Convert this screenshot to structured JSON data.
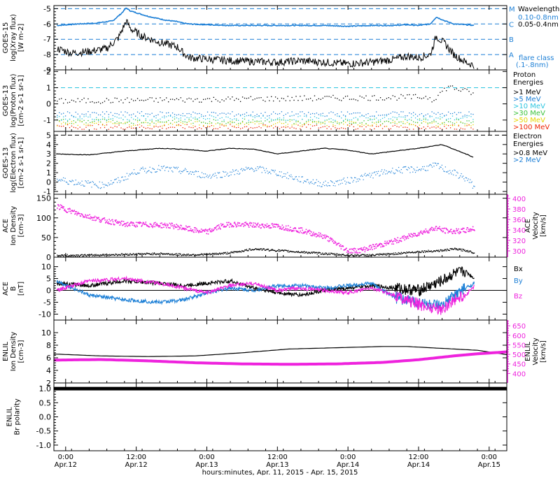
{
  "colors": {
    "axis": "#000000",
    "blue": "#1c7fd6",
    "cyan": "#2cc5e0",
    "magenta": "#ee22dd",
    "green": "#3cc23c",
    "yellow": "#e6d400",
    "orange": "#ee8800",
    "red": "#ee2200"
  },
  "x_axis": {
    "title": "hours:minutes, Apr. 11, 2015 - Apr. 15, 2015",
    "ticks": [
      {
        "t": 0,
        "time": "0:00",
        "date": "Apr.12"
      },
      {
        "t": 12,
        "time": "12:00",
        "date": "Apr.12"
      },
      {
        "t": 24,
        "time": "0:00",
        "date": "Apr.13"
      },
      {
        "t": 36,
        "time": "12:00",
        "date": "Apr.13"
      },
      {
        "t": 48,
        "time": "0:00",
        "date": "Apr.14"
      },
      {
        "t": 60,
        "time": "12:00",
        "date": "Apr.14"
      },
      {
        "t": 72,
        "time": "0:00",
        "date": "Apr.15"
      }
    ],
    "range": [
      -2,
      75
    ]
  },
  "chart_data": [
    {
      "type": "line",
      "ylabel": [
        "GOES-15",
        "log(Xray flux)",
        "[W m-2]"
      ],
      "ylim": [
        -9,
        -4.8
      ],
      "yticks": [
        -9,
        -8,
        -7,
        -6,
        -5
      ],
      "flare_levels": [
        {
          "name": "M",
          "value": -5
        },
        {
          "name": "C",
          "value": -6
        },
        {
          "name": "B",
          "value": -7
        },
        {
          "name": "A",
          "value": -8
        }
      ],
      "legend": {
        "title": "Wavelength",
        "items": [
          {
            "label": "0.10-0.8nm",
            "color": "blue"
          },
          {
            "label": "0.05-0.4nm",
            "color": "axis"
          }
        ],
        "note": [
          "flare class",
          "(.1-.8nm)"
        ]
      },
      "series": [
        {
          "color": "blue",
          "x": [
            -1.5,
            2,
            5,
            8,
            9.5,
            10.3,
            11,
            14,
            17,
            19,
            20,
            21,
            24,
            28,
            32,
            36,
            40,
            44,
            48,
            52,
            56,
            58,
            60,
            62,
            63,
            64.5,
            66,
            68,
            69.5
          ],
          "y": [
            -6.1,
            -6.0,
            -5.95,
            -5.8,
            -5.3,
            -4.95,
            -5.15,
            -5.5,
            -5.75,
            -5.85,
            -5.95,
            -6.0,
            -6.05,
            -6.1,
            -6.1,
            -6.1,
            -6.1,
            -6.1,
            -6.15,
            -6.1,
            -6.1,
            -6.05,
            -6.1,
            -6.0,
            -5.55,
            -5.8,
            -6.0,
            -6.05,
            -6.1
          ]
        },
        {
          "color": "axis",
          "x": [
            -1.5,
            1,
            4,
            7,
            9,
            10.3,
            11,
            13,
            16,
            19,
            20,
            21,
            24,
            28,
            32,
            36,
            40,
            44,
            48,
            52,
            56,
            58,
            60,
            62,
            63,
            64.5,
            66,
            68,
            69.5
          ],
          "y": [
            -7.6,
            -7.9,
            -7.8,
            -7.6,
            -6.9,
            -5.8,
            -6.3,
            -6.8,
            -7.2,
            -7.5,
            -7.9,
            -8.2,
            -8.3,
            -8.4,
            -8.45,
            -8.5,
            -8.4,
            -8.5,
            -8.6,
            -8.5,
            -8.3,
            -8.1,
            -8.2,
            -8.0,
            -6.8,
            -7.3,
            -8.0,
            -8.5,
            -8.7
          ]
        }
      ]
    },
    {
      "type": "scatter",
      "ylabel": [
        "GOES-13",
        "log(Proton flux)",
        "[cm-2 s-1 sr-1]"
      ],
      "ylim": [
        -1.7,
        2.1
      ],
      "yticks": [
        -1,
        0,
        1,
        2
      ],
      "reference_line": 1,
      "legend": {
        "title": [
          "Proton",
          "Energies"
        ],
        "items": [
          {
            "label": ">1 MeV",
            "color": "axis",
            "level": 0.2
          },
          {
            "label": ">5 MeV",
            "color": "blue",
            "level": -0.6
          },
          {
            "label": ">10 MeV",
            "color": "cyan",
            "level": -0.85
          },
          {
            "label": ">30 MeV",
            "color": "green",
            "level": -1.05
          },
          {
            "label": ">50 MeV",
            "color": "yellow",
            "level": -1.2
          },
          {
            "label": ">100 MeV",
            "color": "red",
            "level": -1.4
          }
        ]
      }
    },
    {
      "type": "scatter",
      "ylabel": [
        "GOES-13",
        "log(Electron flux)",
        "[cm-2 s-1 sr-1]"
      ],
      "ylim": [
        -1.3,
        5.4
      ],
      "yticks": [
        -1,
        0,
        1,
        2,
        3,
        4,
        5
      ],
      "reference_line": 5,
      "legend": {
        "title": [
          "Electron",
          "Energies"
        ],
        "items": [
          {
            "label": ">0.8 MeV",
            "color": "axis"
          },
          {
            "label": ">2 MeV",
            "color": "blue"
          }
        ]
      },
      "series": [
        {
          "color": "axis",
          "x": [
            -1.5,
            4,
            10,
            16,
            20,
            24,
            28,
            32,
            36,
            40,
            44,
            48,
            52,
            56,
            60,
            64,
            66,
            68,
            69.5
          ],
          "y": [
            3.0,
            2.9,
            3.3,
            3.6,
            3.5,
            3.3,
            3.6,
            3.5,
            3.0,
            3.3,
            3.6,
            3.4,
            3.0,
            3.3,
            3.6,
            4.0,
            3.5,
            3.0,
            2.6
          ]
        },
        {
          "color": "blue",
          "x": [
            -1.5,
            2,
            6,
            9,
            12,
            16,
            20,
            24,
            28,
            32,
            36,
            40,
            44,
            48,
            52,
            56,
            60,
            63,
            64,
            66,
            68,
            69.5
          ],
          "y": [
            0.3,
            0.0,
            -0.3,
            0.2,
            1.2,
            1.5,
            1.2,
            0.7,
            1.0,
            1.5,
            1.0,
            0.3,
            -0.2,
            0.2,
            0.8,
            1.3,
            1.4,
            1.8,
            1.5,
            1.0,
            0.4,
            -0.5
          ]
        }
      ]
    },
    {
      "type": "scatter",
      "ylabel": [
        "ACE",
        "Ion Density",
        "[cm-3]"
      ],
      "ylim": [
        0,
        160
      ],
      "yticks": [
        0,
        50,
        100,
        150
      ],
      "right_axis": {
        "ylabel": [
          "ACE",
          "Velocity",
          "[km/s]"
        ],
        "ylim": [
          288,
          408
        ],
        "yticks": [
          300,
          320,
          340,
          360,
          380,
          400
        ]
      },
      "series": [
        {
          "name": "density",
          "color": "axis",
          "x": [
            -1.5,
            4,
            10,
            16,
            20,
            24,
            28,
            32,
            36,
            40,
            44,
            48,
            52,
            56,
            60,
            64,
            66,
            68,
            69.5
          ],
          "y": [
            5,
            6,
            8,
            10,
            7,
            8,
            12,
            22,
            18,
            14,
            10,
            6,
            6,
            10,
            15,
            18,
            22,
            18,
            12
          ]
        },
        {
          "name": "velocity",
          "color": "magenta",
          "x": [
            -1.5,
            2,
            6,
            10,
            14,
            18,
            22,
            24,
            26,
            28,
            32,
            36,
            40,
            44,
            48,
            50,
            52,
            56,
            60,
            63,
            64,
            66,
            68,
            69.5
          ],
          "y": [
            386,
            372,
            360,
            352,
            351,
            349,
            340,
            337,
            347,
            352,
            350,
            348,
            340,
            328,
            301,
            302,
            308,
            320,
            335,
            345,
            340,
            338,
            340,
            344
          ]
        }
      ]
    },
    {
      "type": "scatter",
      "ylabel": [
        "ACE",
        "B",
        "[nT]"
      ],
      "ylim": [
        -12.5,
        14
      ],
      "yticks": [
        -10,
        -5,
        0,
        5,
        10
      ],
      "legend": {
        "items": [
          {
            "label": "Bx",
            "color": "axis"
          },
          {
            "label": "By",
            "color": "blue"
          },
          {
            "label": "Bz",
            "color": "magenta"
          }
        ]
      },
      "series": [
        {
          "name": "Bx",
          "color": "axis",
          "x": [
            -1.5,
            4,
            10,
            16,
            20,
            24,
            28,
            32,
            36,
            40,
            44,
            48,
            52,
            56,
            60,
            64,
            66,
            68,
            69.5
          ],
          "y": [
            3,
            2,
            4,
            3,
            2,
            3,
            4,
            1,
            -1,
            -2,
            0,
            1,
            2,
            1,
            0,
            4,
            7,
            8,
            5
          ]
        },
        {
          "name": "By",
          "color": "blue",
          "x": [
            -1.5,
            4,
            10,
            16,
            20,
            24,
            28,
            32,
            36,
            40,
            44,
            48,
            52,
            56,
            60,
            64,
            66,
            68,
            69.5
          ],
          "y": [
            4,
            -2,
            -4,
            -5,
            -4,
            -1,
            1,
            0,
            2,
            2,
            1,
            2,
            3,
            -3,
            -5,
            -7,
            -2,
            1,
            3
          ]
        },
        {
          "name": "Bz",
          "color": "magenta",
          "x": [
            -1.5,
            4,
            10,
            16,
            20,
            24,
            28,
            32,
            36,
            40,
            44,
            48,
            52,
            56,
            60,
            64,
            66,
            68,
            69.5
          ],
          "y": [
            0,
            4,
            5,
            3,
            1,
            -1,
            2,
            3,
            0,
            1,
            0,
            -1,
            1,
            -2,
            -6,
            -8,
            -4,
            -2,
            2
          ]
        }
      ]
    },
    {
      "type": "line",
      "ylabel": [
        "ENLIL",
        "Ion Density",
        "[cm-3]"
      ],
      "ylim": [
        2,
        12
      ],
      "yticks": [
        2,
        4,
        6,
        8,
        10
      ],
      "right_axis": {
        "ylabel": [
          "ENLIL",
          "Velocity",
          "[km/s]"
        ],
        "ylim": [
          350,
          680
        ],
        "yticks": [
          400,
          450,
          500,
          550,
          600,
          650
        ]
      },
      "series": [
        {
          "name": "density",
          "color": "axis",
          "x": [
            -2,
            6,
            14,
            22,
            30,
            38,
            46,
            54,
            58,
            62,
            66,
            70,
            75
          ],
          "y": [
            6.6,
            6.3,
            6.2,
            6.3,
            6.8,
            7.4,
            7.6,
            7.8,
            7.8,
            7.6,
            7.4,
            7.2,
            6.5
          ]
        },
        {
          "name": "velocity",
          "color": "magenta",
          "x": [
            -2,
            6,
            14,
            22,
            30,
            38,
            46,
            54,
            60,
            66,
            70,
            75
          ],
          "y": [
            470,
            473,
            466,
            456,
            450,
            448,
            450,
            458,
            472,
            492,
            503,
            513
          ]
        }
      ]
    },
    {
      "type": "line",
      "ylabel": [
        "ENLIL",
        "Br polarity"
      ],
      "ylim": [
        -1.2,
        1.2
      ],
      "yticks": [
        -1.0,
        -0.5,
        0.0,
        0.5,
        1.0
      ],
      "yticklabels": [
        "-1.0",
        "-0.5",
        "0.0",
        "0.5",
        "1.0"
      ],
      "series": [
        {
          "name": "polarity",
          "color": "axis",
          "x": [
            -2,
            75
          ],
          "y": [
            1.0,
            1.0
          ]
        }
      ]
    }
  ]
}
